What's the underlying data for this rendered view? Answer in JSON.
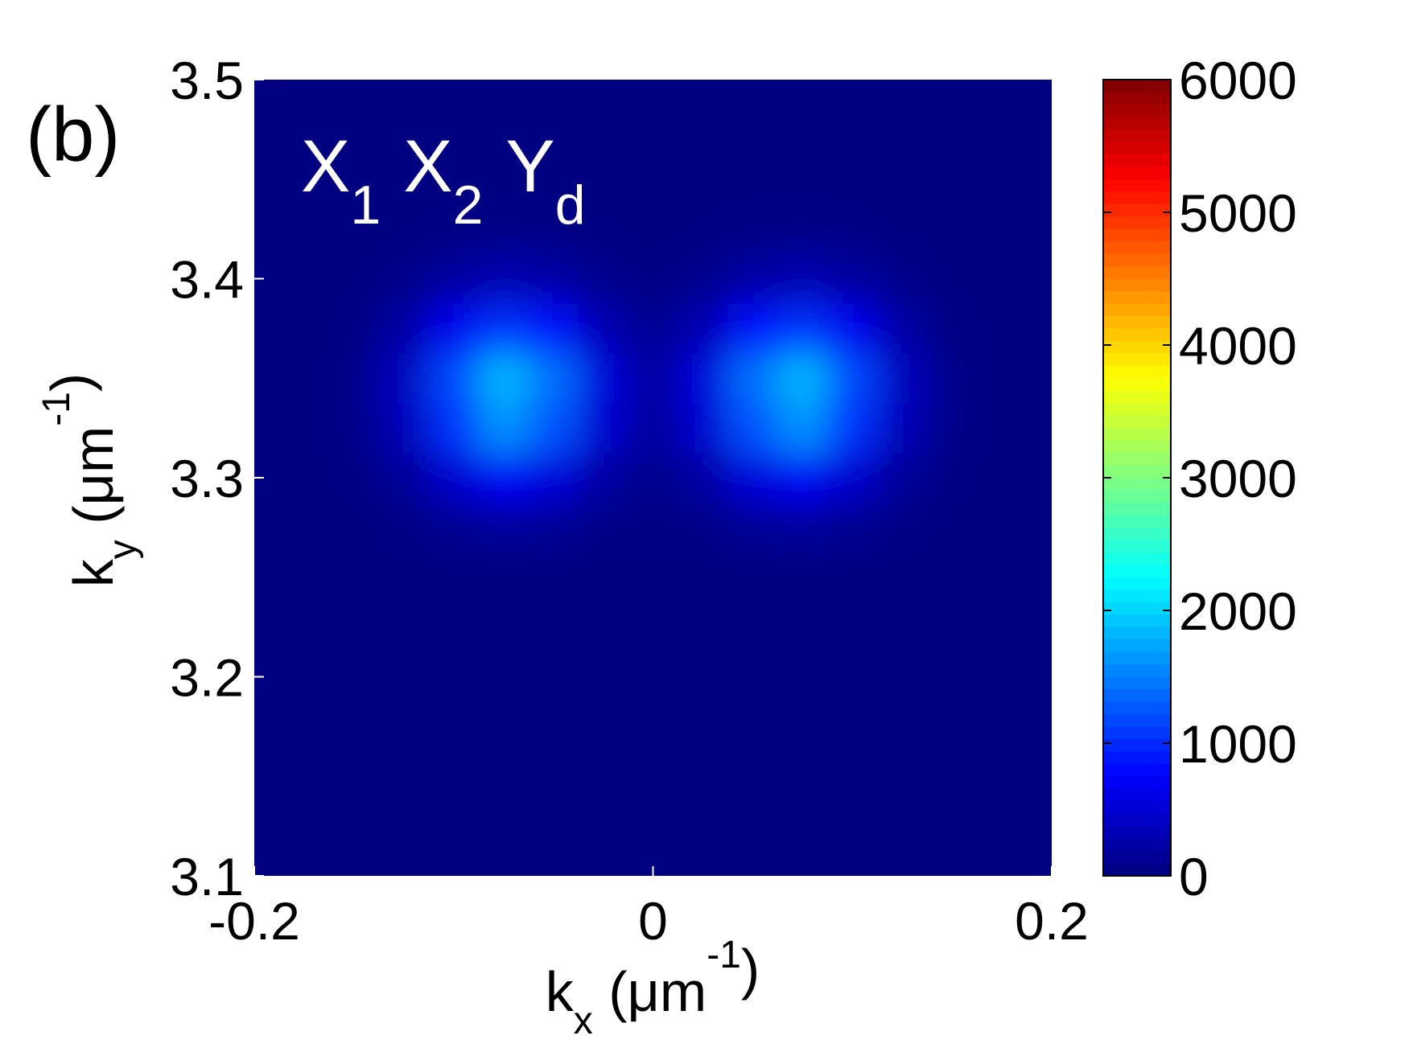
{
  "chart_data": {
    "type": "heatmap",
    "panel_label": "(b)",
    "annotation": [
      {
        "text": "X",
        "sub": "1"
      },
      {
        "text": "X",
        "sub": "2"
      },
      {
        "text": "Y",
        "sub": "d"
      }
    ],
    "xlabel": [
      "k",
      "x",
      " (μm",
      "-1",
      ")"
    ],
    "ylabel": [
      "k",
      "y",
      " (μm",
      "-1",
      ")"
    ],
    "x": [
      -0.2,
      -0.175,
      -0.15,
      -0.125,
      -0.1,
      -0.075,
      -0.05,
      -0.025,
      0,
      0.025,
      0.05,
      0.075,
      0.1,
      0.125,
      0.15,
      0.175,
      0.2
    ],
    "y": [
      3.1,
      3.125,
      3.15,
      3.175,
      3.2,
      3.225,
      3.25,
      3.275,
      3.3,
      3.325,
      3.35,
      3.375,
      3.4,
      3.425,
      3.45,
      3.475,
      3.5
    ],
    "z": [
      [
        0,
        0,
        0,
        0,
        0,
        0,
        0,
        0,
        0,
        0,
        0,
        0,
        0,
        0,
        0,
        0,
        0
      ],
      [
        0,
        0,
        0,
        0,
        0,
        0,
        0,
        0,
        0,
        0,
        0,
        0,
        0,
        0,
        0,
        0,
        0
      ],
      [
        0,
        0,
        0,
        0,
        0,
        0,
        0,
        0,
        0,
        0,
        0,
        0,
        0,
        0,
        0,
        0,
        0
      ],
      [
        0,
        0,
        0,
        0,
        0,
        0,
        0,
        0,
        0,
        0,
        0,
        0,
        0,
        0,
        0,
        0,
        0
      ],
      [
        0,
        0,
        0,
        0,
        0,
        0,
        0,
        0,
        0,
        0,
        0,
        0,
        0,
        0,
        0,
        0,
        0
      ],
      [
        0,
        0,
        0,
        0,
        0,
        0,
        0,
        0,
        0,
        0,
        0,
        0,
        0,
        0,
        0,
        0,
        0
      ],
      [
        0,
        0,
        0,
        0,
        0,
        0,
        0,
        0,
        0,
        0,
        0,
        0,
        0,
        0,
        0,
        0,
        0
      ],
      [
        0,
        0,
        5,
        33,
        102,
        157,
        121,
        46,
        18,
        46,
        121,
        157,
        102,
        33,
        5,
        0,
        0
      ],
      [
        0,
        0,
        24,
        150,
        461,
        709,
        544,
        209,
        80,
        209,
        544,
        709,
        461,
        150,
        24,
        0,
        0
      ],
      [
        0,
        0,
        55,
        340,
        1047,
        1611,
        1237,
        474,
        181,
        474,
        1237,
        1611,
        1047,
        340,
        55,
        0,
        0
      ],
      [
        0,
        0,
        62,
        385,
        1187,
        1825,
        1401,
        537,
        205,
        537,
        1401,
        1825,
        1187,
        385,
        62,
        0,
        0
      ],
      [
        0,
        0,
        35,
        218,
        671,
        1032,
        792,
        304,
        116,
        304,
        792,
        1032,
        671,
        218,
        35,
        0,
        0
      ],
      [
        0,
        0,
        10,
        62,
        190,
        292,
        224,
        86,
        33,
        86,
        224,
        292,
        190,
        62,
        10,
        0,
        0
      ],
      [
        0,
        0,
        1,
        9,
        27,
        42,
        32,
        12,
        5,
        12,
        32,
        42,
        27,
        9,
        1,
        0,
        0
      ],
      [
        0,
        0,
        0,
        0,
        0,
        0,
        0,
        0,
        0,
        0,
        0,
        0,
        0,
        0,
        0,
        0,
        0
      ],
      [
        0,
        0,
        0,
        0,
        0,
        0,
        0,
        0,
        0,
        0,
        0,
        0,
        0,
        0,
        0,
        0,
        0
      ],
      [
        0,
        0,
        0,
        0,
        0,
        0,
        0,
        0,
        0,
        0,
        0,
        0,
        0,
        0,
        0,
        0,
        0
      ]
    ],
    "xlim": [
      -0.2,
      0.2
    ],
    "ylim": [
      3.1,
      3.5
    ],
    "xticks": [
      -0.2,
      0,
      0.2
    ],
    "yticks": [
      3.1,
      3.2,
      3.3,
      3.4,
      3.5
    ],
    "colormap": "jet",
    "clim": [
      0,
      6000
    ],
    "cticks": [
      0,
      1000,
      2000,
      3000,
      4000,
      5000,
      6000
    ]
  }
}
